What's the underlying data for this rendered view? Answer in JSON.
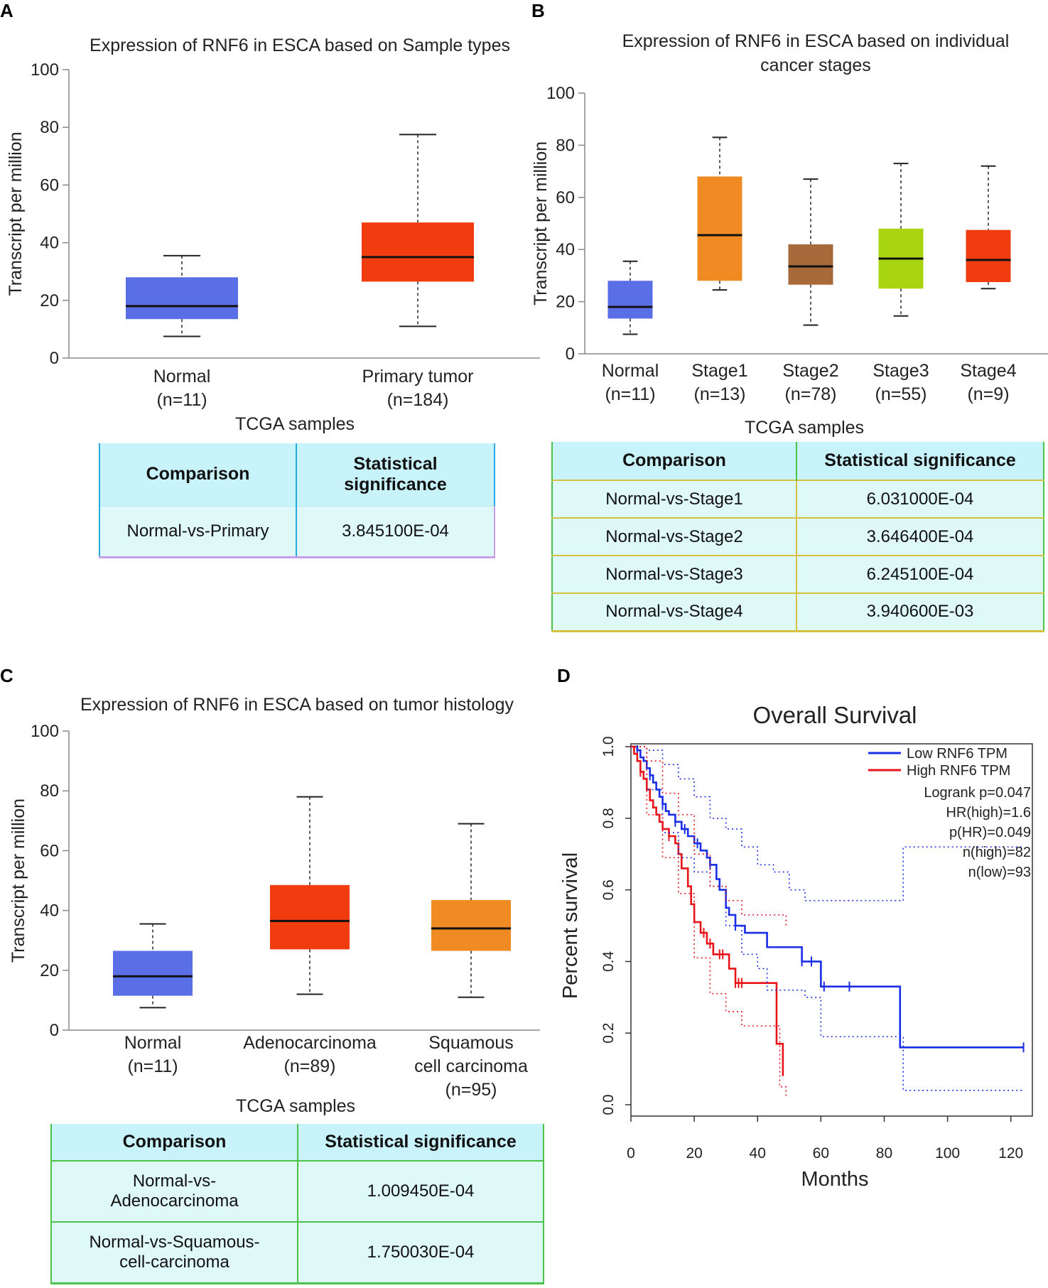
{
  "panel_labels": [
    "A",
    "B",
    "C",
    "D"
  ],
  "chart_data": [
    {
      "panel": "A",
      "type": "box",
      "title": "Expression of RNF6 in ESCA based on Sample types",
      "ylabel": "Transcript per million",
      "xlabel": "TCGA samples",
      "ylim": [
        0,
        100
      ],
      "yticks": [
        0,
        20,
        40,
        60,
        80,
        100
      ],
      "categories": [
        {
          "name": "Normal",
          "n": "(n=11)",
          "min": 7.5,
          "q1": 13.5,
          "median": 18,
          "q3": 28,
          "max": 35.5,
          "color": "#5a6ee6"
        },
        {
          "name": "Primary tumor",
          "n": "(n=184)",
          "min": 11,
          "q1": 26.5,
          "median": 35,
          "q3": 47,
          "max": 77.5,
          "color": "#f03c0f"
        }
      ]
    },
    {
      "panel": "B",
      "type": "box",
      "title": [
        "Expression of RNF6 in ESCA based on individual",
        "cancer stages"
      ],
      "ylabel": "Transcript per million",
      "xlabel": "TCGA samples",
      "ylim": [
        0,
        100
      ],
      "yticks": [
        0,
        20,
        40,
        60,
        80,
        100
      ],
      "categories": [
        {
          "name": "Normal",
          "n": "(n=11)",
          "min": 7.5,
          "q1": 13.5,
          "median": 18,
          "q3": 28,
          "max": 35.5,
          "color": "#5a6ee6"
        },
        {
          "name": "Stage1",
          "n": "(n=13)",
          "min": 24.5,
          "q1": 28,
          "median": 45.5,
          "q3": 68,
          "max": 83,
          "color": "#f08a22"
        },
        {
          "name": "Stage2",
          "n": "(n=78)",
          "min": 11,
          "q1": 26.5,
          "median": 33.5,
          "q3": 42,
          "max": 67,
          "color": "#a86a3a"
        },
        {
          "name": "Stage3",
          "n": "(n=55)",
          "min": 14.5,
          "q1": 25,
          "median": 36.5,
          "q3": 48,
          "max": 73,
          "color": "#a8d412"
        },
        {
          "name": "Stage4",
          "n": "(n=9)",
          "min": 25,
          "q1": 27.5,
          "median": 36,
          "q3": 47.5,
          "max": 72,
          "color": "#f03c0f"
        }
      ]
    },
    {
      "panel": "C",
      "type": "box",
      "title": "Expression of RNF6 in ESCA based on tumor histology",
      "ylabel": "Transcript per million",
      "xlabel": "TCGA samples",
      "ylim": [
        0,
        100
      ],
      "yticks": [
        0,
        20,
        40,
        60,
        80,
        100
      ],
      "categories": [
        {
          "name": "Normal",
          "n": "(n=11)",
          "label_lines": [
            "Normal",
            "(n=11)"
          ],
          "min": 7.5,
          "q1": 11.5,
          "median": 18,
          "q3": 26.5,
          "max": 35.5,
          "color": "#5a6ee6"
        },
        {
          "name": "Adenocarcinoma",
          "n": "(n=89)",
          "label_lines": [
            "Adenocarcinoma",
            "(n=89)"
          ],
          "min": 12,
          "q1": 27,
          "median": 36.5,
          "q3": 48.5,
          "max": 78,
          "color": "#f03c0f"
        },
        {
          "name": "Squamous cell carcinoma",
          "n": "(n=95)",
          "label_lines": [
            "Squamous",
            "cell carcinoma",
            "(n=95)"
          ],
          "min": 11,
          "q1": 26.5,
          "median": 34,
          "q3": 43.5,
          "max": 69,
          "color": "#f08a22"
        }
      ]
    },
    {
      "panel": "D",
      "type": "line",
      "title": "Overall Survival",
      "xlabel": "Months",
      "ylabel": "Percent survival",
      "xlim": [
        0,
        125
      ],
      "ylim": [
        0,
        1
      ],
      "xticks": [
        0,
        20,
        40,
        60,
        80,
        100,
        120
      ],
      "yticks": [
        "0.0",
        "0.2",
        "0.4",
        "0.6",
        "0.8",
        "1.0"
      ],
      "legend": {
        "entries": [
          {
            "label": "Low RNF6 TPM",
            "color": "#1a2ee8"
          },
          {
            "label": "High RNF6 TPM",
            "color": "#e8141a"
          }
        ],
        "stats": [
          "Logrank p=0.047",
          "HR(high)=1.6",
          "p(HR)=0.049",
          "n(high)=82",
          "n(low)=93"
        ]
      },
      "series": [
        {
          "name": "Low RNF6 TPM",
          "color": "#1a2ee8",
          "x": [
            0,
            2,
            3,
            4,
            5,
            6,
            7,
            8,
            9,
            10,
            11,
            12,
            14,
            16,
            18,
            20,
            22,
            24,
            25,
            27,
            28,
            30,
            31,
            33,
            36,
            43,
            54,
            60,
            85,
            124
          ],
          "y": [
            1.0,
            0.99,
            0.97,
            0.96,
            0.94,
            0.92,
            0.9,
            0.88,
            0.86,
            0.84,
            0.82,
            0.81,
            0.79,
            0.77,
            0.75,
            0.73,
            0.71,
            0.69,
            0.67,
            0.63,
            0.6,
            0.55,
            0.53,
            0.5,
            0.48,
            0.44,
            0.4,
            0.33,
            0.16,
            0.16
          ],
          "censor_x": [
            2,
            6,
            10,
            14,
            17,
            21,
            25,
            33,
            54,
            57,
            61,
            69,
            124
          ]
        },
        {
          "name": "High RNF6 TPM",
          "color": "#e8141a",
          "x": [
            0,
            1,
            2,
            3,
            4,
            5,
            6,
            7,
            8,
            9,
            10,
            12,
            14,
            15,
            16,
            18,
            19,
            20,
            22,
            24,
            26,
            31,
            33,
            46,
            47,
            48
          ],
          "y": [
            1.0,
            0.98,
            0.96,
            0.93,
            0.91,
            0.88,
            0.85,
            0.83,
            0.81,
            0.79,
            0.77,
            0.75,
            0.73,
            0.7,
            0.66,
            0.61,
            0.56,
            0.51,
            0.48,
            0.45,
            0.42,
            0.38,
            0.34,
            0.17,
            0.17,
            0.08
          ],
          "censor_x": [
            3,
            12,
            23,
            25,
            28,
            29,
            33,
            34,
            35
          ]
        },
        {
          "name": "Low RNF6 TPM 95% CI upper",
          "color": "#1a2ee8",
          "dashed": true,
          "x": [
            0,
            5,
            10,
            15,
            20,
            25,
            30,
            35,
            40,
            45,
            50,
            55,
            60,
            85,
            86,
            124
          ],
          "y": [
            1.0,
            0.99,
            0.95,
            0.91,
            0.86,
            0.8,
            0.77,
            0.72,
            0.67,
            0.65,
            0.6,
            0.57,
            0.57,
            0.57,
            0.72,
            0.72
          ]
        },
        {
          "name": "Low RNF6 TPM 95% CI lower",
          "color": "#1a2ee8",
          "dashed": true,
          "x": [
            0,
            5,
            10,
            15,
            20,
            25,
            30,
            35,
            40,
            43,
            55,
            60,
            85,
            86,
            124
          ],
          "y": [
            1.0,
            0.88,
            0.76,
            0.69,
            0.65,
            0.61,
            0.5,
            0.42,
            0.38,
            0.32,
            0.3,
            0.19,
            0.19,
            0.04,
            0.04
          ]
        },
        {
          "name": "High RNF6 TPM 95% CI upper",
          "color": "#e8141a",
          "dashed": true,
          "x": [
            0,
            5,
            10,
            15,
            20,
            25,
            30,
            35,
            45,
            49
          ],
          "y": [
            1.0,
            0.96,
            0.87,
            0.81,
            0.7,
            0.61,
            0.57,
            0.53,
            0.53,
            0.5
          ],
          "extend": true
        },
        {
          "name": "High RNF6 TPM 95% CI lower",
          "color": "#e8141a",
          "dashed": true,
          "x": [
            0,
            5,
            10,
            15,
            20,
            25,
            30,
            35,
            45,
            47,
            49
          ],
          "y": [
            1.0,
            0.81,
            0.69,
            0.59,
            0.41,
            0.31,
            0.26,
            0.22,
            0.22,
            0.05,
            0.02
          ]
        }
      ]
    }
  ],
  "tables": {
    "A": {
      "headers": [
        "Comparison",
        "Statistical significance"
      ],
      "rows": [
        [
          "Normal-vs-Primary",
          "3.845100E-04"
        ]
      ]
    },
    "B": {
      "headers": [
        "Comparison",
        "Statistical significance"
      ],
      "rows": [
        [
          "Normal-vs-Stage1",
          "6.031000E-04"
        ],
        [
          "Normal-vs-Stage2",
          "3.646400E-04"
        ],
        [
          "Normal-vs-Stage3",
          "6.245100E-04"
        ],
        [
          "Normal-vs-Stage4",
          "3.940600E-03"
        ]
      ]
    },
    "C": {
      "headers": [
        "Comparison",
        "Statistical significance"
      ],
      "rows": [
        [
          "Normal-vs-Adenocarcinoma",
          "1.009450E-04"
        ],
        [
          "Normal-vs-Squamous-cell-carcinoma",
          "1.750030E-04"
        ]
      ]
    }
  },
  "table_text": {
    "A_header_1": "Comparison",
    "A_header_2_lines": [
      "Statistical",
      "significance"
    ],
    "C_row_labels": [
      [
        "Normal-vs-",
        "Adenocarcinoma"
      ],
      [
        "Normal-vs-Squamous-",
        "cell-carcinoma"
      ]
    ]
  }
}
